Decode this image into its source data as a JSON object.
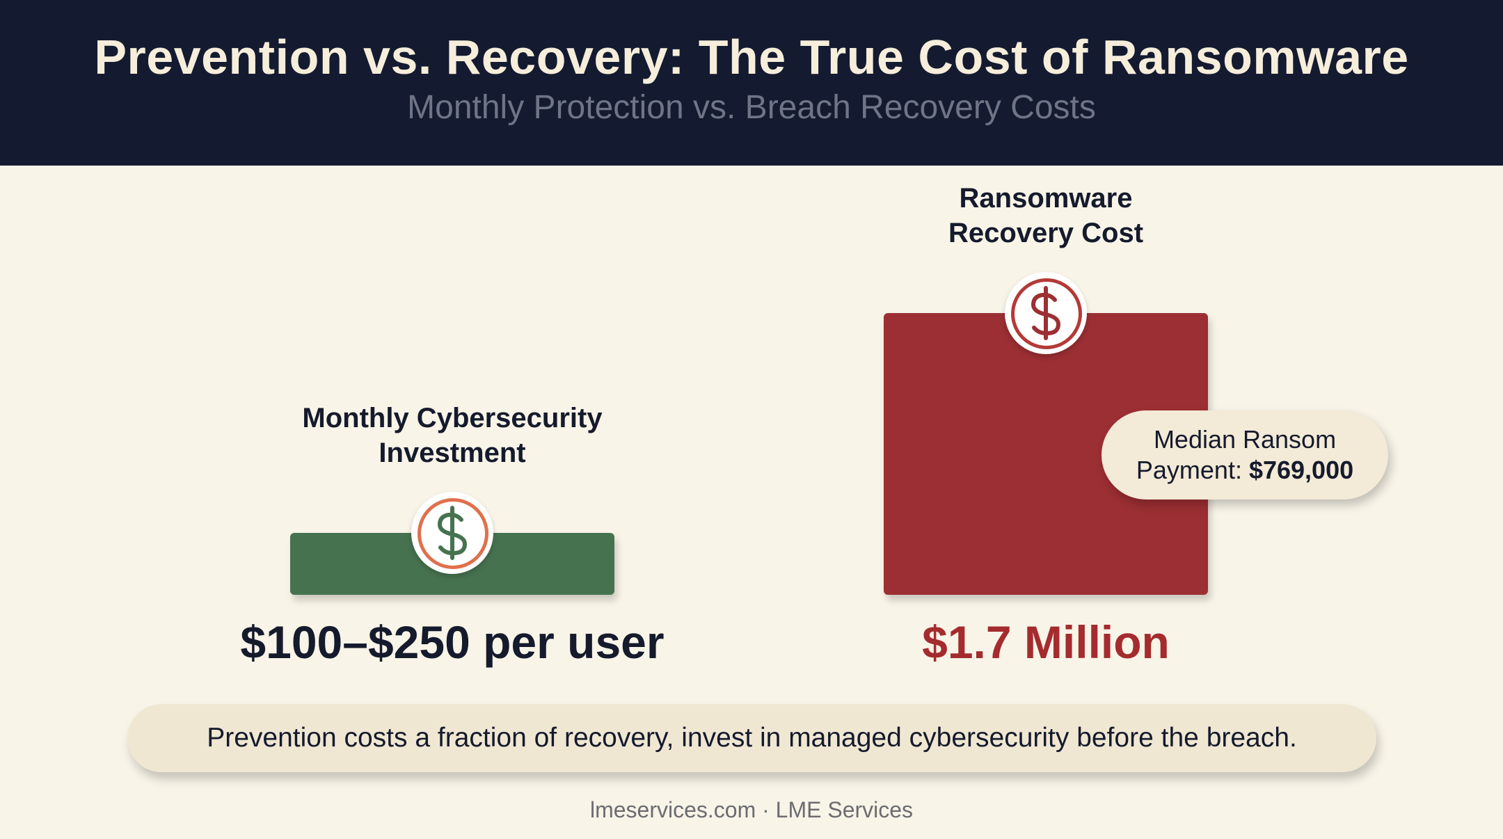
{
  "header": {
    "title": "Prevention vs. Recovery: The True Cost of Ransomware",
    "subtitle": "Monthly Protection vs. Breach Recovery Costs"
  },
  "chart_data": {
    "type": "bar",
    "title": "Prevention vs. Recovery: The True Cost of Ransomware",
    "subtitle": "Monthly Protection vs. Breach Recovery Costs",
    "categories": [
      "Monthly Cybersecurity Investment",
      "Ransomware Recovery Cost"
    ],
    "label_lines": [
      [
        "Monthly Cybersecurity",
        "Investment"
      ],
      [
        "Ransomware",
        "Recovery Cost"
      ]
    ],
    "value_labels": [
      "$100–$250 per user",
      "$1.7 Million"
    ],
    "relative_heights": [
      0.22,
      1.0
    ],
    "colors": [
      "#477250",
      "#9c2f33"
    ],
    "value_colors": [
      "#151a2c",
      "#a42b2e"
    ],
    "coin_ring_colors": [
      "#e0704c",
      "#b43a37"
    ],
    "icon": "dollar-sign-icon",
    "grid": false,
    "legend": "none",
    "annotation": {
      "line1": "Median Ransom",
      "line2_prefix": "Payment: ",
      "line2_value": "$769,000"
    }
  },
  "banner": {
    "text": "Prevention costs a fraction of recovery, invest in managed cybersecurity before the breach."
  },
  "footer": {
    "text": "lmeservices.com · LME Services"
  }
}
